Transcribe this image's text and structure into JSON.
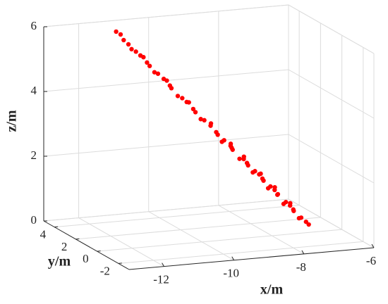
{
  "chart_data": {
    "type": "scatter3d",
    "x_label": "x/m",
    "y_label": "y/m",
    "z_label": "z/m",
    "color": "#ff0000",
    "grid": true,
    "xlim": [
      -13,
      -6
    ],
    "ylim": [
      -3,
      5
    ],
    "zlim": [
      0,
      6
    ],
    "xticks": [
      -12,
      -10,
      -8,
      -6
    ],
    "yticks": [
      -2,
      0,
      2,
      4
    ],
    "zticks": [
      0,
      2,
      4,
      6
    ],
    "points": {
      "x": [
        -11.0,
        -10.9,
        -10.83,
        -10.7,
        -10.65,
        -10.55,
        -10.48,
        -10.38,
        -10.3,
        -10.2,
        -10.13,
        -10.05,
        -9.95,
        -9.85,
        -9.78,
        -9.7,
        -9.6,
        -9.5,
        -9.43,
        -9.35,
        -9.25,
        -9.15,
        -9.08,
        -9.0,
        -8.9,
        -8.85,
        -8.73,
        -8.65,
        -8.6,
        -8.55,
        -8.45,
        -8.4,
        -8.38,
        -8.3,
        -8.2,
        -8.15,
        -8.1,
        -8.03,
        -7.95,
        -7.9,
        -7.85,
        -7.8,
        -7.72,
        -7.68,
        -7.6,
        -7.55,
        -7.5,
        -7.45,
        -7.4,
        -7.33,
        -7.28,
        -7.2,
        -7.15,
        -7.1,
        -7.05,
        -6.98,
        -6.92,
        -6.85,
        -6.8,
        -6.72,
        -6.63
      ],
      "y": [
        4.77,
        4.68,
        4.62,
        4.6,
        4.47,
        4.39,
        4.2,
        4.24,
        4.17,
        4.25,
        4.03,
        3.96,
        3.75,
        3.79,
        3.73,
        3.85,
        3.58,
        3.49,
        3.3,
        3.36,
        3.28,
        3.4,
        3.13,
        3.06,
        2.8,
        2.93,
        2.83,
        2.95,
        2.72,
        2.68,
        2.4,
        2.55,
        2.53,
        2.7,
        2.38,
        2.15,
        2.3,
        2.24,
        2.4,
        2.12,
        2.08,
        1.85,
        1.97,
        1.94,
        2.1,
        1.83,
        1.78,
        1.55,
        1.7,
        1.64,
        1.85,
        1.53,
        1.48,
        1.25,
        1.4,
        1.34,
        1.5,
        1.23,
        1.19,
        1.0,
        1.04
      ],
      "z": [
        5.7,
        5.62,
        5.45,
        5.31,
        5.18,
        5.11,
        5.02,
        4.95,
        4.79,
        4.66,
        4.5,
        4.46,
        4.33,
        4.26,
        4.11,
        4.0,
        3.8,
        3.74,
        3.65,
        3.62,
        3.42,
        3.29,
        3.12,
        3.09,
        2.96,
        3.0,
        2.74,
        2.63,
        2.45,
        2.5,
        2.37,
        2.4,
        2.28,
        2.18,
        1.95,
        1.98,
        2.02,
        1.83,
        1.72,
        1.55,
        1.59,
        1.53,
        1.52,
        1.37,
        1.27,
        1.08,
        1.14,
        1.07,
        1.12,
        0.91,
        0.85,
        0.62,
        0.68,
        0.61,
        0.65,
        0.46,
        0.38,
        0.2,
        0.22,
        0.12,
        0.02
      ]
    }
  }
}
